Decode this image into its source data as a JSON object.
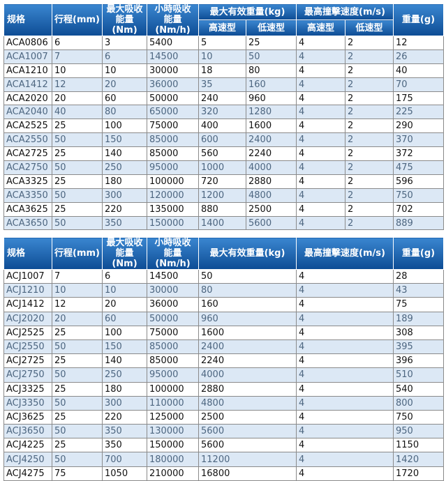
{
  "tables": [
    {
      "header": [
        "规格",
        "行程(mm)",
        "最大吸收\n能量(Nm)",
        "小時吸收\n能量(Nm/h)",
        "最大有效重量(kg)",
        "最高撞擊速度(m/s)",
        "重量(g)"
      ],
      "subheader": [
        "高速型",
        "低速型",
        "高速型",
        "低速型"
      ],
      "rows": [
        [
          "ACA0806",
          "6",
          "3",
          "5400",
          "5",
          "25",
          "4",
          "2",
          "12"
        ],
        [
          "ACA1007",
          "7",
          "6",
          "14500",
          "10",
          "50",
          "4",
          "2",
          "26"
        ],
        [
          "ACA1210",
          "10",
          "10",
          "30000",
          "18",
          "80",
          "4",
          "2",
          "40"
        ],
        [
          "ACA1412",
          "12",
          "20",
          "36000",
          "35",
          "160",
          "4",
          "2",
          "70"
        ],
        [
          "ACA2020",
          "20",
          "60",
          "50000",
          "240",
          "960",
          "4",
          "2",
          "175"
        ],
        [
          "ACA2040",
          "40",
          "80",
          "65000",
          "320",
          "1280",
          "4",
          "2",
          "225"
        ],
        [
          "ACA2525",
          "25",
          "100",
          "75000",
          "400",
          "1600",
          "4",
          "2",
          "290"
        ],
        [
          "ACA2550",
          "50",
          "150",
          "85000",
          "600",
          "2400",
          "4",
          "2",
          "370"
        ],
        [
          "ACA2725",
          "25",
          "140",
          "85000",
          "560",
          "2240",
          "4",
          "2",
          "372"
        ],
        [
          "ACA2750",
          "50",
          "250",
          "95000",
          "1000",
          "4000",
          "4",
          "2",
          "475"
        ],
        [
          "ACA3325",
          "25",
          "180",
          "100000",
          "720",
          "2880",
          "4",
          "2",
          "596"
        ],
        [
          "ACA3350",
          "50",
          "300",
          "120000",
          "1200",
          "4800",
          "4",
          "2",
          "750"
        ],
        [
          "ACA3625",
          "25",
          "220",
          "135000",
          "880",
          "2500",
          "4",
          "2",
          "702"
        ],
        [
          "ACA3650",
          "50",
          "350",
          "150000",
          "1400",
          "5600",
          "4",
          "2",
          "889"
        ]
      ]
    },
    {
      "header": [
        "规格",
        "行程(mm)",
        "最大吸收\n能量(Nm)",
        "小時吸收\n能量(Nm/h)",
        "最大有效重量(kg)",
        "最高撞擊速度(m/s)",
        "重量(g)"
      ],
      "rows": [
        [
          "ACJ1007",
          "7",
          "6",
          "14500",
          "50",
          "4",
          "28"
        ],
        [
          "ACJ1210",
          "10",
          "10",
          "30000",
          "80",
          "4",
          "43"
        ],
        [
          "ACJ1412",
          "12",
          "20",
          "36000",
          "160",
          "4",
          "75"
        ],
        [
          "ACJ2020",
          "20",
          "60",
          "50000",
          "960",
          "4",
          "189"
        ],
        [
          "ACJ2525",
          "25",
          "100",
          "75000",
          "1600",
          "4",
          "308"
        ],
        [
          "ACJ2550",
          "50",
          "150",
          "85000",
          "2400",
          "4",
          "395"
        ],
        [
          "ACJ2725",
          "25",
          "140",
          "85000",
          "2240",
          "4",
          "396"
        ],
        [
          "ACJ2750",
          "50",
          "250",
          "95000",
          "4000",
          "4",
          "510"
        ],
        [
          "ACJ3325",
          "25",
          "180",
          "100000",
          "2880",
          "4",
          "540"
        ],
        [
          "ACJ3350",
          "50",
          "300",
          "110000",
          "4800",
          "4",
          "800"
        ],
        [
          "ACJ3625",
          "25",
          "220",
          "125000",
          "2500",
          "4",
          "750"
        ],
        [
          "ACJ3650",
          "50",
          "350",
          "130000",
          "5600",
          "4",
          "950"
        ],
        [
          "ACJ4225",
          "25",
          "350",
          "150000",
          "5600",
          "4",
          "1150"
        ],
        [
          "ACJ4250",
          "50",
          "700",
          "180000",
          "11200",
          "4",
          "1420"
        ],
        [
          "ACJ4275",
          "75",
          "1050",
          "210000",
          "16800",
          "4",
          "1720"
        ]
      ]
    }
  ]
}
